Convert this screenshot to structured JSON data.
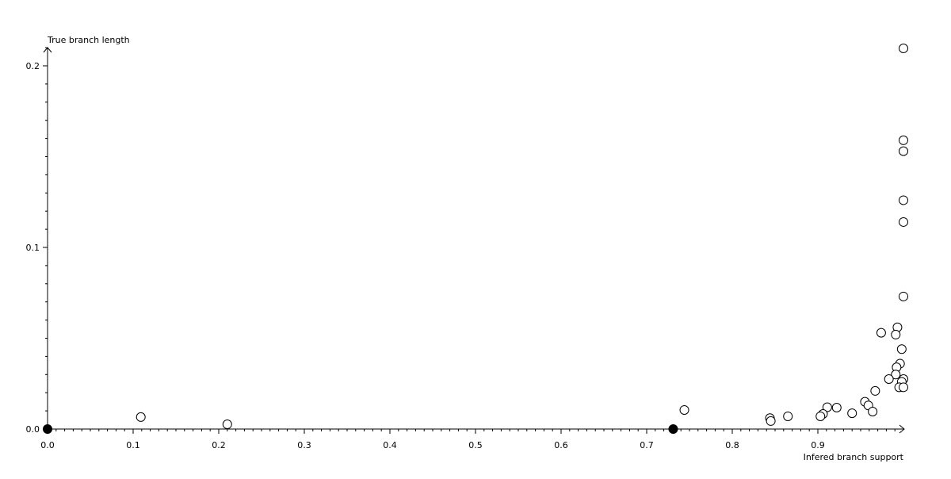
{
  "chart_data": {
    "type": "scatter",
    "xlabel": "Infered branch support",
    "ylabel": "True branch length",
    "xlim": [
      0,
      1.0
    ],
    "ylim": [
      0,
      0.21
    ],
    "x_ticks": [
      "0.0",
      "0.1",
      "0.2",
      "0.3",
      "0.4",
      "0.5",
      "0.6",
      "0.7",
      "0.8",
      "0.9"
    ],
    "y_ticks": [
      "0.0",
      "0.1",
      "0.2"
    ],
    "grid": false,
    "series": [
      {
        "marker": "open-circle",
        "color": "#000000",
        "points": [
          [
            1.0,
            0.2096
          ],
          [
            1.0,
            0.159
          ],
          [
            1.0,
            0.153
          ],
          [
            1.0,
            0.126
          ],
          [
            1.0,
            0.114
          ],
          [
            1.0,
            0.073
          ],
          [
            0.974,
            0.053
          ],
          [
            0.993,
            0.056
          ],
          [
            0.991,
            0.052
          ],
          [
            0.998,
            0.044
          ],
          [
            0.996,
            0.036
          ],
          [
            0.992,
            0.034
          ],
          [
            0.991,
            0.03
          ],
          [
            1.0,
            0.0275
          ],
          [
            0.983,
            0.0275
          ],
          [
            0.998,
            0.026
          ],
          [
            0.995,
            0.023
          ],
          [
            1.0,
            0.023
          ],
          [
            0.967,
            0.021
          ],
          [
            0.955,
            0.015
          ],
          [
            0.959,
            0.013
          ],
          [
            0.964,
            0.0096
          ],
          [
            0.94,
            0.0087
          ],
          [
            0.922,
            0.0118
          ],
          [
            0.911,
            0.012
          ],
          [
            0.906,
            0.0083
          ],
          [
            0.903,
            0.007
          ],
          [
            0.865,
            0.007
          ],
          [
            0.844,
            0.006
          ],
          [
            0.845,
            0.0044
          ],
          [
            0.744,
            0.0105
          ],
          [
            0.21,
            0.0026
          ],
          [
            0.109,
            0.0066
          ]
        ]
      },
      {
        "marker": "filled-circle",
        "color": "#000000",
        "points": [
          [
            0.0,
            0.0
          ],
          [
            0.731,
            0.0
          ]
        ]
      }
    ]
  }
}
